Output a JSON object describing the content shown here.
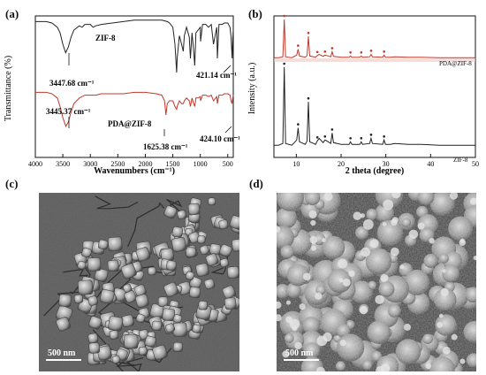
{
  "chart_data": [
    {
      "panel": "(a)",
      "type": "line",
      "xlabel": "Wavenumbers (cm⁻¹)",
      "ylabel": "Transmittance (%)",
      "xlim": [
        4000,
        400
      ],
      "xticks": [
        "4000",
        "3500",
        "3000",
        "2500",
        "2000",
        "1500",
        "1000",
        "500"
      ],
      "series": [
        {
          "name": "ZIF-8",
          "color": "#222222",
          "x": [
            4000,
            3800,
            3700,
            3600,
            3550,
            3500,
            3448,
            3400,
            3350,
            3300,
            3200,
            3150,
            3100,
            3000,
            2950,
            2900,
            2800,
            2600,
            2400,
            2200,
            2000,
            1800,
            1700,
            1600,
            1560,
            1500,
            1460,
            1430,
            1420,
            1380,
            1340,
            1310,
            1290,
            1250,
            1200,
            1180,
            1150,
            1120,
            1100,
            1080,
            1040,
            1000,
            995,
            960,
            900,
            850,
            800,
            760,
            700,
            690,
            660,
            600,
            560,
            500,
            460,
            440,
            421,
            410,
            400
          ],
          "y": [
            96,
            96,
            95,
            92,
            88,
            80,
            74,
            78,
            85,
            90,
            93,
            92,
            94,
            94,
            92,
            93,
            94,
            95,
            96,
            97,
            97,
            97,
            97,
            96,
            95,
            92,
            80,
            60,
            70,
            86,
            80,
            75,
            86,
            92,
            85,
            70,
            88,
            75,
            65,
            88,
            90,
            92,
            82,
            94,
            94,
            92,
            94,
            80,
            92,
            70,
            94,
            94,
            95,
            95,
            92,
            85,
            70,
            84,
            90
          ]
        },
        {
          "name": "PDA@ZIF-8",
          "color": "#c0392b",
          "x": [
            4000,
            3800,
            3700,
            3600,
            3550,
            3500,
            3445,
            3400,
            3350,
            3300,
            3200,
            3100,
            3000,
            2900,
            2800,
            2600,
            2400,
            2200,
            2000,
            1800,
            1700,
            1650,
            1625,
            1600,
            1560,
            1500,
            1460,
            1430,
            1420,
            1380,
            1340,
            1310,
            1290,
            1250,
            1200,
            1180,
            1150,
            1120,
            1100,
            1080,
            1040,
            1000,
            995,
            960,
            900,
            850,
            800,
            760,
            700,
            690,
            660,
            600,
            560,
            500,
            460,
            440,
            424,
            410,
            400
          ],
          "y": [
            46,
            46,
            45,
            42,
            36,
            28,
            22,
            25,
            32,
            38,
            42,
            44,
            44,
            44,
            45,
            45,
            45,
            46,
            46,
            45,
            44,
            40,
            30,
            38,
            40,
            40,
            36,
            34,
            36,
            40,
            38,
            38,
            40,
            42,
            40,
            36,
            42,
            38,
            36,
            42,
            42,
            43,
            40,
            44,
            44,
            43,
            44,
            40,
            43,
            38,
            44,
            44,
            45,
            45,
            44,
            40,
            38,
            42,
            44
          ]
        }
      ],
      "annotations": [
        "ZIF-8",
        "3447.68 cm⁻¹",
        "421.14 cm⁻¹",
        "3445.37 cm⁻¹",
        "PDA@ZIF-8",
        "1625.38 cm⁻¹",
        "424.10 cm⁻¹"
      ]
    },
    {
      "panel": "(b)",
      "type": "line",
      "xlabel": "2 theta (degree)",
      "ylabel": "Intensity (a.u.)",
      "xlim": [
        5,
        50
      ],
      "xticks": [
        "10",
        "20",
        "30",
        "40",
        "50"
      ],
      "peak_markers": [
        7.3,
        10.4,
        12.7,
        14.7,
        16.4,
        18.0,
        22.1,
        24.5,
        26.7,
        29.6
      ],
      "series": [
        {
          "name": "PDA@ZIF-8",
          "color": "#c0392b",
          "x": [
            5,
            6,
            7,
            7.3,
            7.6,
            9,
            10.1,
            10.4,
            10.7,
            12,
            12.4,
            12.7,
            13.0,
            14.3,
            14.7,
            15.1,
            16.0,
            16.4,
            16.8,
            17.7,
            18.0,
            18.3,
            20,
            21.8,
            22.1,
            22.4,
            24.2,
            24.5,
            24.8,
            26.4,
            26.7,
            27.0,
            29.3,
            29.6,
            29.9,
            31,
            32,
            35,
            38,
            42,
            46,
            50
          ],
          "y": [
            10,
            10,
            12,
            100,
            12,
            10,
            16,
            30,
            14,
            11,
            15,
            60,
            14,
            11,
            15,
            18,
            13,
            16,
            15,
            12,
            24,
            13,
            11,
            11,
            14,
            11,
            11,
            14,
            11,
            12,
            18,
            12,
            11,
            16,
            11,
            11,
            12,
            11,
            11,
            10,
            10,
            10
          ]
        },
        {
          "name": "ZIF-8",
          "color": "#222222",
          "x": [
            5,
            6,
            7,
            7.3,
            7.6,
            9,
            10.1,
            10.4,
            10.7,
            12,
            12.4,
            12.7,
            13.0,
            14.3,
            14.7,
            15.1,
            16.0,
            16.4,
            16.8,
            17.7,
            18.0,
            18.3,
            20,
            21.8,
            22.1,
            22.4,
            24.2,
            24.5,
            24.8,
            26.4,
            26.7,
            27.0,
            29.3,
            29.6,
            29.9,
            31,
            32,
            35,
            38,
            42,
            46,
            50
          ],
          "y": [
            10,
            10,
            12,
            100,
            12,
            10,
            16,
            30,
            14,
            11,
            15,
            60,
            14,
            11,
            15,
            18,
            13,
            16,
            15,
            12,
            24,
            13,
            11,
            11,
            14,
            11,
            11,
            14,
            11,
            12,
            18,
            12,
            11,
            16,
            11,
            11,
            12,
            11,
            11,
            10,
            10,
            10
          ]
        }
      ],
      "annotations": [
        "PDA@ZIF-8",
        "ZIF-8"
      ]
    }
  ],
  "panels": {
    "a": "(a)",
    "b": "(b)",
    "c": "(c)",
    "d": "(d)"
  },
  "sem": {
    "c_scale": "500 nm",
    "d_scale": "500 nm"
  }
}
